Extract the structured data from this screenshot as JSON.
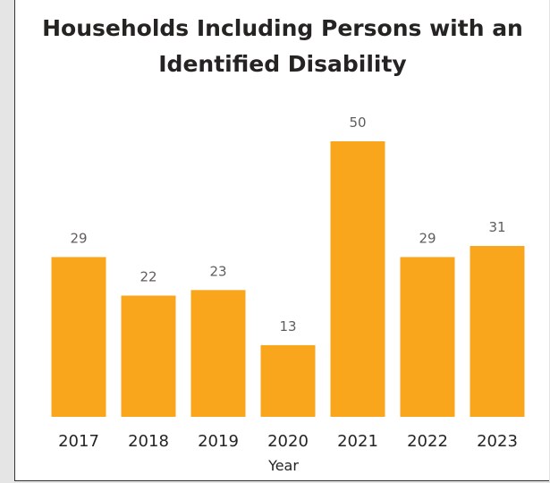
{
  "chart_data": {
    "type": "bar",
    "title": "Households Including Persons with an Identified Disability",
    "xlabel": "Year",
    "ylabel": "",
    "categories": [
      "2017",
      "2018",
      "2019",
      "2020",
      "2021",
      "2022",
      "2023"
    ],
    "values": [
      29,
      22,
      23,
      13,
      50,
      29,
      31
    ],
    "ylim": [
      0,
      50
    ],
    "grid": false,
    "data_labels": true,
    "bar_color": "#F9A61C"
  }
}
